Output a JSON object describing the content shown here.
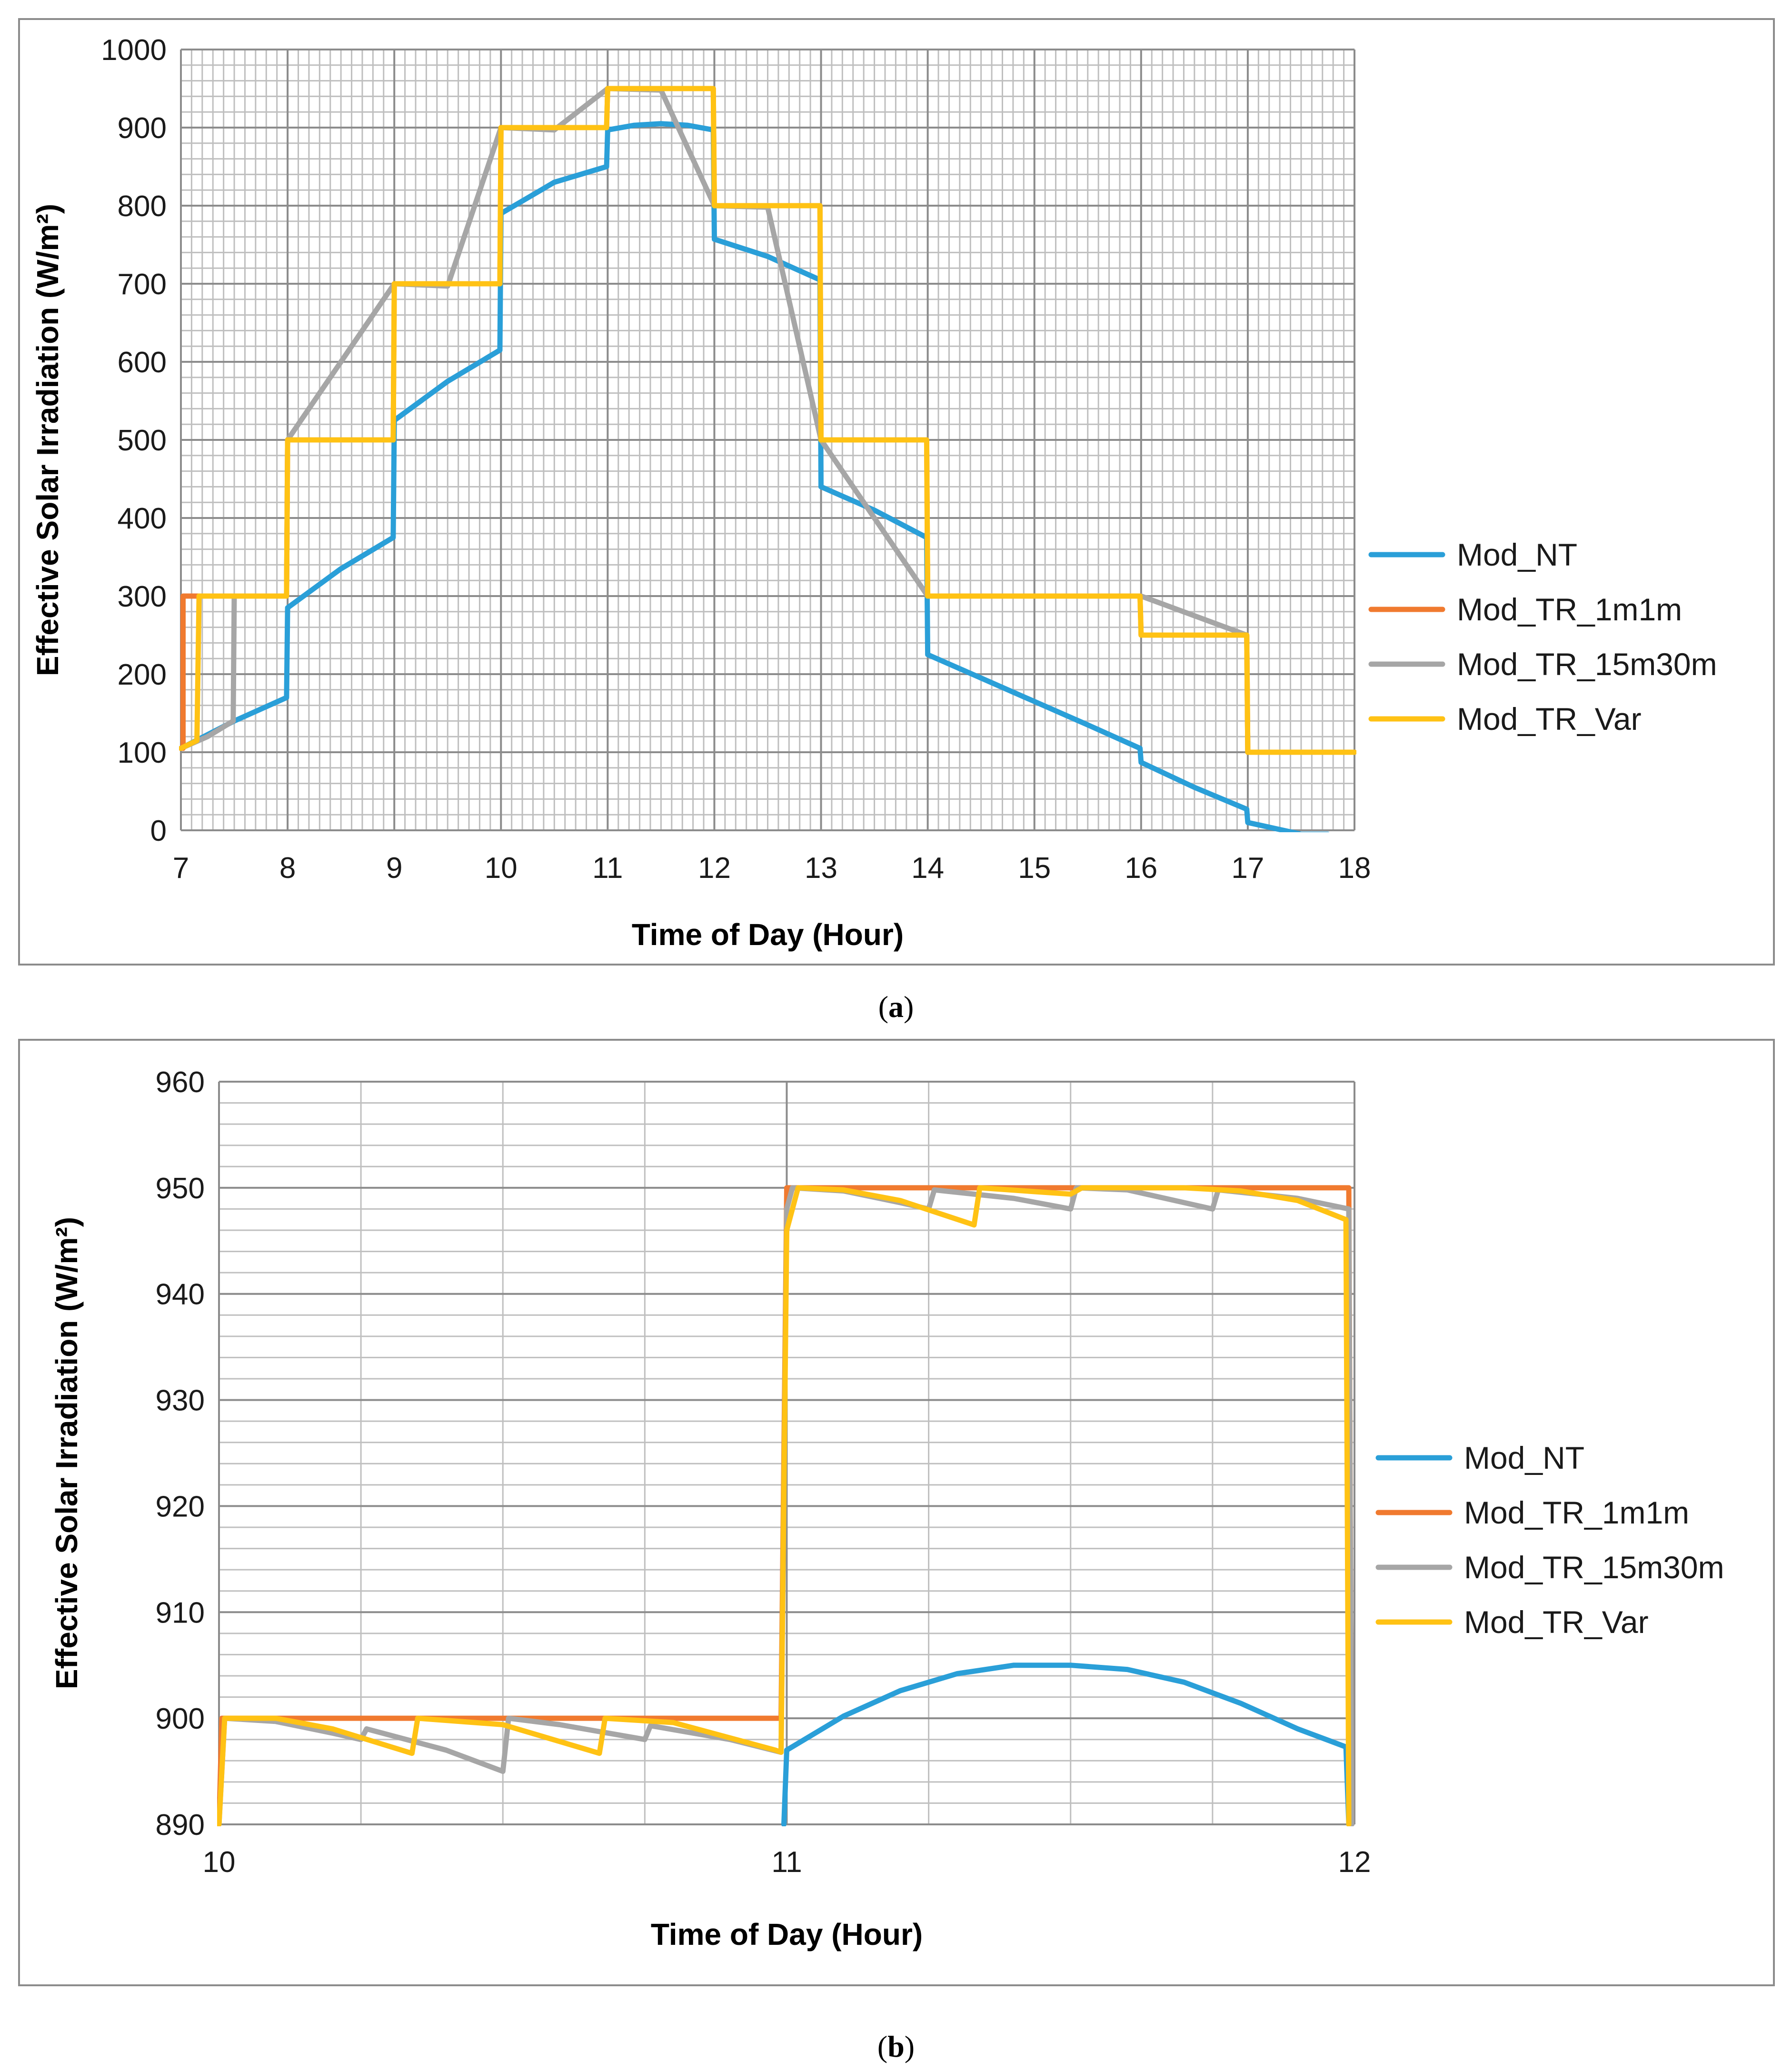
{
  "colors": {
    "Mod_NT": "#2a9fd8",
    "Mod_TR_1m1m": "#f07a2f",
    "Mod_TR_15m30m": "#a6a6a6",
    "Mod_TR_Var": "#ffc214",
    "grid_major": "#8c8c8c",
    "grid_minor": "#bfbfbf"
  },
  "captions": {
    "a": "a",
    "b": "b"
  },
  "chart_data": [
    {
      "panel": "a",
      "type": "line",
      "title": "",
      "xlabel": "Time of Day (Hour)",
      "ylabel": "Effective Solar Irradiation (W/m²)",
      "xlim": [
        7,
        18
      ],
      "ylim": [
        0,
        1000
      ],
      "grid": true,
      "legend_position": "right",
      "xticks": [
        7,
        8,
        9,
        10,
        11,
        12,
        13,
        14,
        15,
        16,
        17,
        18
      ],
      "yticks": [
        0,
        100,
        200,
        300,
        400,
        500,
        600,
        700,
        800,
        900,
        1000
      ],
      "series": [
        {
          "name": "Mod_NT",
          "x": [
            7.0,
            7.5,
            7.99,
            8.0,
            8.5,
            8.99,
            9.0,
            9.5,
            9.99,
            10.0,
            10.5,
            10.99,
            11.0,
            11.25,
            11.5,
            11.75,
            11.99,
            12.0,
            12.5,
            12.99,
            13.0,
            13.5,
            13.99,
            14.0,
            14.5,
            15.0,
            15.5,
            15.99,
            16.0,
            16.5,
            16.99,
            17.0,
            17.5,
            17.75
          ],
          "y": [
            105,
            140,
            170,
            285,
            335,
            375,
            525,
            575,
            615,
            790,
            830,
            850,
            897,
            903,
            905,
            903,
            897,
            757,
            735,
            705,
            440,
            410,
            375,
            225,
            195,
            165,
            135,
            105,
            87,
            55,
            27,
            10,
            -5,
            -5
          ]
        },
        {
          "name": "Mod_TR_1m1m",
          "x": [
            7.0,
            7.02,
            7.02,
            7.99,
            8.0,
            8.99,
            9.0,
            9.99,
            10.0,
            10.99,
            11.0,
            11.99,
            12.0,
            12.99,
            13.0,
            13.99,
            14.0,
            15.99,
            16.0,
            16.99,
            17.0,
            18.0
          ],
          "y": [
            105,
            105,
            300,
            300,
            500,
            500,
            700,
            700,
            900,
            900,
            950,
            950,
            800,
            800,
            500,
            500,
            300,
            300,
            250,
            250,
            100,
            100
          ]
        },
        {
          "name": "Mod_TR_15m30m",
          "x": [
            7.0,
            7.25,
            7.49,
            7.5,
            7.75,
            7.99,
            8.0,
            9.0,
            9.5,
            10.0,
            10.5,
            11.0,
            11.5,
            12.0,
            12.5,
            13.0,
            14.0,
            16.0,
            16.99,
            17.0,
            18.0
          ],
          "y": [
            105,
            120,
            140,
            300,
            300,
            300,
            500,
            700,
            697,
            900,
            897,
            950,
            948,
            800,
            798,
            500,
            300,
            300,
            250,
            100,
            100
          ]
        },
        {
          "name": "Mod_TR_Var",
          "x": [
            7.0,
            7.15,
            7.17,
            7.99,
            8.0,
            8.99,
            9.0,
            9.99,
            10.0,
            10.99,
            11.0,
            11.99,
            12.0,
            12.99,
            13.0,
            13.99,
            14.0,
            15.99,
            16.0,
            16.99,
            17.0,
            18.0
          ],
          "y": [
            105,
            115,
            300,
            300,
            500,
            500,
            700,
            700,
            900,
            900,
            950,
            950,
            800,
            800,
            500,
            500,
            300,
            300,
            250,
            250,
            100,
            100
          ]
        }
      ]
    },
    {
      "panel": "b",
      "type": "line",
      "title": "",
      "xlabel": "Time of Day (Hour)",
      "ylabel": "Effective Solar Irradiation (W/m²)",
      "xlim": [
        10,
        12
      ],
      "ylim": [
        890,
        960
      ],
      "grid": true,
      "legend_position": "right",
      "xticks": [
        10,
        11,
        12
      ],
      "yticks": [
        890,
        900,
        910,
        920,
        930,
        940,
        950,
        960
      ],
      "series": [
        {
          "name": "Mod_NT",
          "x": [
            10.995,
            11.0,
            11.1,
            11.2,
            11.3,
            11.4,
            11.5,
            11.6,
            11.7,
            11.8,
            11.9,
            11.985,
            11.99
          ],
          "y": [
            890,
            897,
            900.2,
            902.6,
            904.2,
            905.0,
            905.0,
            904.6,
            903.4,
            901.4,
            899.0,
            897.3,
            890
          ]
        },
        {
          "name": "Mod_TR_1m1m",
          "x": [
            10.0,
            10.005,
            10.99,
            11.0,
            11.99,
            11.995
          ],
          "y": [
            890,
            900,
            900,
            950,
            950,
            890
          ]
        },
        {
          "name": "Mod_TR_15m30m",
          "x": [
            10.0,
            10.01,
            10.1,
            10.2,
            10.25,
            10.26,
            10.4,
            10.5,
            10.51,
            10.6,
            10.75,
            10.76,
            10.9,
            10.99,
            11.0,
            11.01,
            11.1,
            11.2,
            11.25,
            11.26,
            11.4,
            11.5,
            11.51,
            11.6,
            11.75,
            11.76,
            11.9,
            11.99,
            11.995
          ],
          "y": [
            890,
            900,
            899.7,
            898.6,
            898.0,
            899.0,
            897.0,
            895.0,
            900.0,
            899.4,
            898.0,
            899.3,
            898.0,
            896.8,
            948,
            950,
            949.7,
            948.6,
            948.0,
            949.8,
            949.0,
            948.0,
            950.0,
            949.8,
            948.0,
            949.8,
            949.0,
            948.0,
            890
          ]
        },
        {
          "name": "Mod_TR_Var",
          "x": [
            10.0,
            10.01,
            10.1,
            10.2,
            10.34,
            10.35,
            10.5,
            10.67,
            10.68,
            10.8,
            10.98,
            10.99,
            11.0,
            11.02,
            11.1,
            11.2,
            11.33,
            11.34,
            11.5,
            11.52,
            11.6,
            11.7,
            11.8,
            11.9,
            11.985,
            11.99
          ],
          "y": [
            890,
            900,
            900,
            899.0,
            896.7,
            900.0,
            899.4,
            896.7,
            900.0,
            899.6,
            897.0,
            896.8,
            946,
            950,
            949.8,
            948.8,
            946.5,
            950.0,
            949.4,
            950.0,
            950.0,
            950.0,
            949.7,
            948.8,
            947.0,
            890
          ]
        }
      ]
    }
  ]
}
